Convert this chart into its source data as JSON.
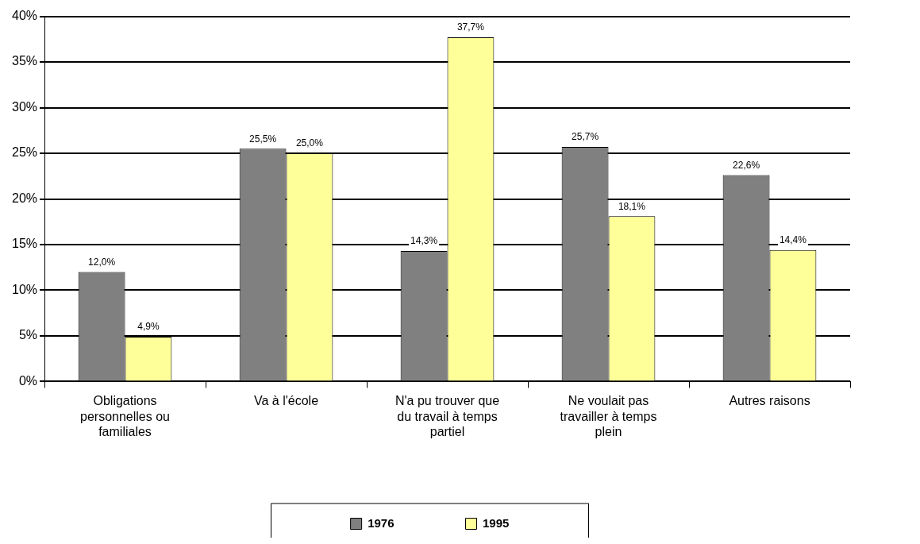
{
  "chart_data": {
    "type": "bar",
    "categories": [
      "Obligations personnelles ou familiales",
      "Va à l'école",
      "N'a pu trouver que du travail à temps partiel",
      "Ne voulait pas travailler à temps plein",
      "Autres raisons"
    ],
    "series": [
      {
        "name": "1976",
        "color": "#808080",
        "values": [
          12.0,
          25.5,
          14.3,
          25.7,
          22.6
        ],
        "value_labels": [
          "12,0%",
          "25,5%",
          "14,3%",
          "25,7%",
          "22,6%"
        ]
      },
      {
        "name": "1995",
        "color": "#ffff99",
        "values": [
          4.9,
          25.0,
          37.7,
          18.1,
          14.4
        ],
        "value_labels": [
          "4,9%",
          "25,0%",
          "37,7%",
          "18,1%",
          "14,4%"
        ]
      }
    ],
    "ylim": [
      0,
      40
    ],
    "yticks": [
      {
        "value": 0,
        "label": "0%"
      },
      {
        "value": 5,
        "label": "5%"
      },
      {
        "value": 10,
        "label": "10%"
      },
      {
        "value": 15,
        "label": "15%"
      },
      {
        "value": 20,
        "label": "20%"
      },
      {
        "value": 25,
        "label": "25%"
      },
      {
        "value": 30,
        "label": "30%"
      },
      {
        "value": 35,
        "label": "35%"
      },
      {
        "value": 40,
        "label": "40%"
      }
    ],
    "grid": "y",
    "legend": "bottom"
  }
}
